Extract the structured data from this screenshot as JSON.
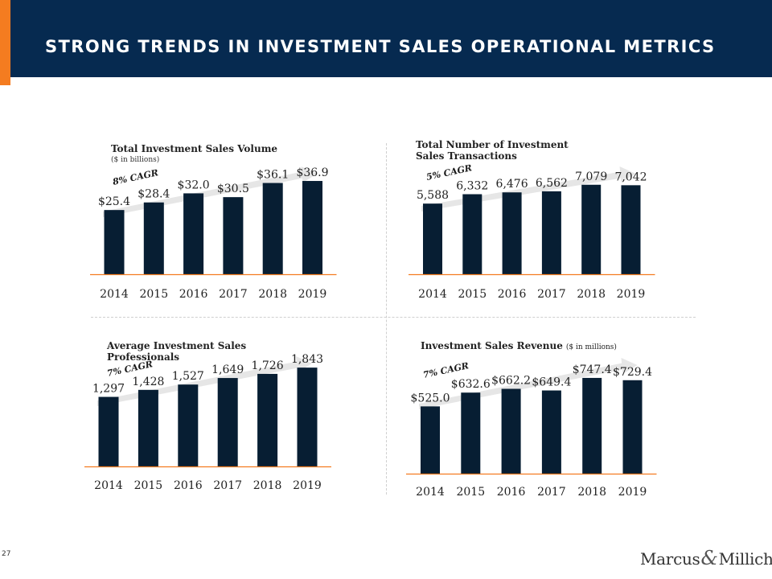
{
  "title": "STRONG TRENDS IN INVESTMENT SALES OPERATIONAL METRICS",
  "page_number": "27",
  "logo": {
    "left": "Marcus",
    "amp": "&",
    "right": "Millichap"
  },
  "colors": {
    "header_bg": "#062a50",
    "accent": "#f47c20",
    "bar": "#071e33",
    "baseline": "#f47c20",
    "arrow": "#e6e6e6"
  },
  "chart_data": [
    {
      "type": "bar",
      "title_lines": [
        "Total Investment Sales Volume"
      ],
      "subtitle": "($ in billions)",
      "title_inline_note": "",
      "cagr": "8% CAGR",
      "categories": [
        "2014",
        "2015",
        "2016",
        "2017",
        "2018",
        "2019"
      ],
      "values": [
        25.4,
        28.4,
        32.0,
        30.5,
        36.1,
        36.9
      ],
      "labels": [
        "$25.4",
        "$28.4",
        "$32.0",
        "$30.5",
        "$36.1",
        "$36.9"
      ],
      "xlabel": "",
      "ylabel": "",
      "ylim": [
        0,
        42
      ]
    },
    {
      "type": "bar",
      "title_lines": [
        "Total Number of Investment",
        "Sales Transactions"
      ],
      "subtitle": "",
      "title_inline_note": "",
      "cagr": "5% CAGR",
      "categories": [
        "2014",
        "2015",
        "2016",
        "2017",
        "2018",
        "2019"
      ],
      "values": [
        5588,
        6332,
        6476,
        6562,
        7079,
        7042
      ],
      "labels": [
        "5,588",
        "6,332",
        "6,476",
        "6,562",
        "7,079",
        "7,042"
      ],
      "xlabel": "",
      "ylabel": "",
      "ylim": [
        0,
        8400
      ]
    },
    {
      "type": "bar",
      "title_lines": [
        "Average Investment Sales",
        "Professionals"
      ],
      "subtitle": "",
      "title_inline_note": "",
      "cagr": "7% CAGR",
      "categories": [
        "2014",
        "2015",
        "2016",
        "2017",
        "2018",
        "2019"
      ],
      "values": [
        1297,
        1428,
        1527,
        1649,
        1726,
        1843
      ],
      "labels": [
        "1,297",
        "1,428",
        "1,527",
        "1,649",
        "1,726",
        "1,843"
      ],
      "xlabel": "",
      "ylabel": "",
      "ylim": [
        0,
        2100
      ]
    },
    {
      "type": "bar",
      "title_lines": [
        "Investment Sales Revenue"
      ],
      "subtitle": "",
      "title_inline_note": "($ in millions)",
      "cagr": "7% CAGR",
      "categories": [
        "2014",
        "2015",
        "2016",
        "2017",
        "2018",
        "2019"
      ],
      "values": [
        525.0,
        632.6,
        662.2,
        649.4,
        747.4,
        729.4
      ],
      "labels": [
        "$525.0",
        "$632.6",
        "$662.2",
        "$649.4",
        "$747.4",
        "$729.4"
      ],
      "xlabel": "",
      "ylabel": "",
      "ylim": [
        0,
        860
      ]
    }
  ]
}
